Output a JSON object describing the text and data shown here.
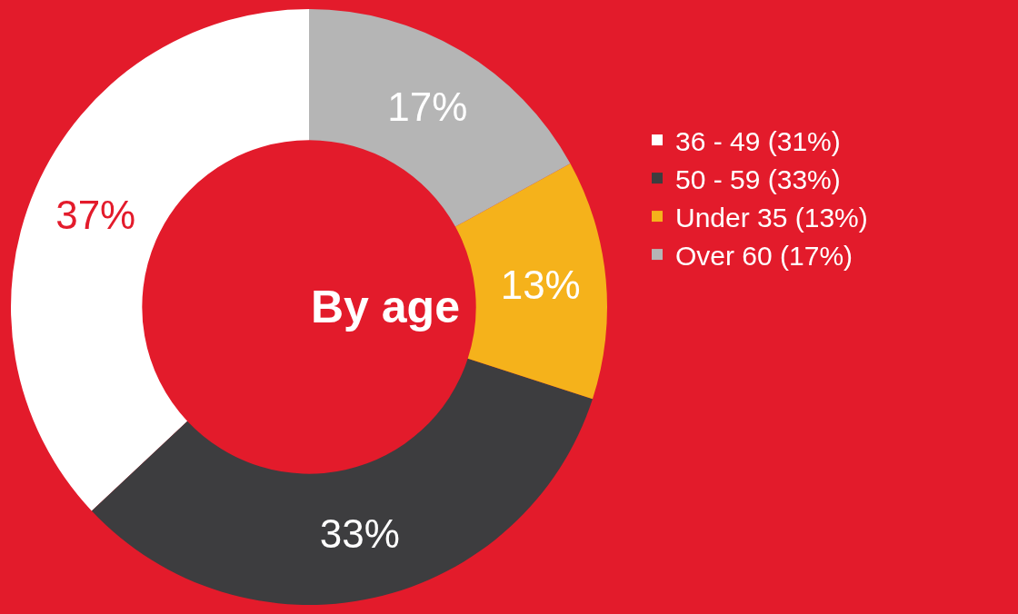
{
  "chart_data": {
    "type": "donut",
    "title": "By age",
    "categories": [
      "36 - 49 (31%)",
      "50 - 59 (33%)",
      "Under 35 (13%)",
      "Over 60 (17%)"
    ],
    "values": [
      37,
      33,
      13,
      17
    ],
    "value_labels": [
      "37%",
      "33%",
      "13%",
      "17%"
    ],
    "colors": [
      "#ffffff",
      "#3d3d3f",
      "#f5b21b",
      "#b5b5b5"
    ],
    "legend": "right"
  }
}
